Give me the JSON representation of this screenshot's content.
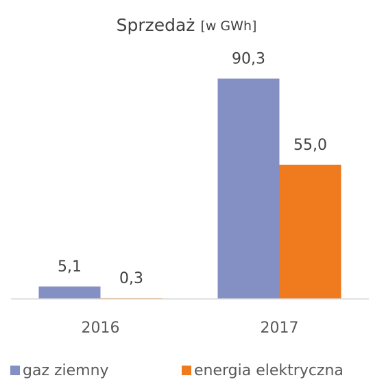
{
  "chart_data": {
    "type": "bar",
    "title": "Sprzedaż",
    "subtitle": "[w GWh]",
    "categories": [
      "2016",
      "2017"
    ],
    "series": [
      {
        "name": "gaz ziemny",
        "color": "#8490c4",
        "values": [
          5.1,
          90.3
        ],
        "value_labels": [
          "5,1",
          "90,3"
        ]
      },
      {
        "name": "energia elektryczna",
        "color": "#f07a1e",
        "values": [
          0.3,
          55.0
        ],
        "value_labels": [
          "0,3",
          "55,0"
        ]
      }
    ],
    "ylim": [
      0,
      100
    ],
    "legend": "bottom"
  }
}
